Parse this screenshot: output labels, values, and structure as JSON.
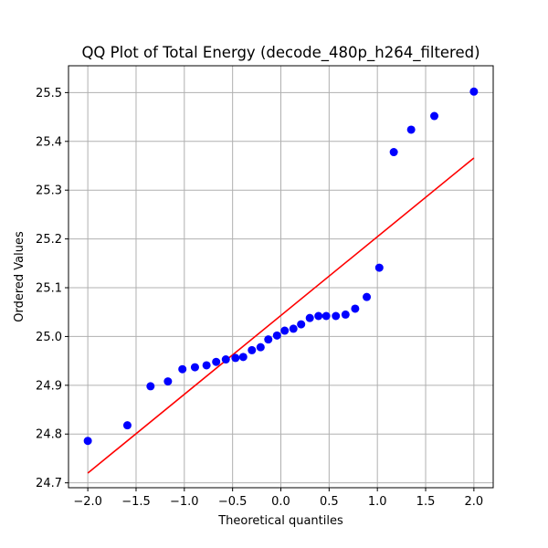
{
  "chart_data": {
    "type": "scatter",
    "title": "QQ Plot of Total Energy (decode_480p_h264_filtered)",
    "xlabel": "Theoretical quantiles",
    "ylabel": "Ordered Values",
    "xlim": [
      -2.2,
      2.2
    ],
    "ylim": [
      24.69,
      25.555
    ],
    "xticks": [
      -2.0,
      -1.5,
      -1.0,
      -0.5,
      0.0,
      0.5,
      1.0,
      1.5,
      2.0
    ],
    "xtick_labels": [
      "−2.0",
      "−1.5",
      "−1.0",
      "−0.5",
      "0.0",
      "0.5",
      "1.0",
      "1.5",
      "2.0"
    ],
    "yticks": [
      24.7,
      24.8,
      24.9,
      25.0,
      25.1,
      25.2,
      25.3,
      25.4,
      25.5
    ],
    "ytick_labels": [
      "24.7",
      "24.8",
      "24.9",
      "25.0",
      "25.1",
      "25.2",
      "25.3",
      "25.4",
      "25.5"
    ],
    "grid": true,
    "colors": {
      "points": "#0000ff",
      "fit_line": "#ff0000"
    },
    "points": {
      "x": [
        -2.0,
        -1.59,
        -1.35,
        -1.17,
        -1.02,
        -0.89,
        -0.77,
        -0.67,
        -0.57,
        -0.47,
        -0.39,
        -0.3,
        -0.21,
        -0.13,
        -0.04,
        0.04,
        0.13,
        0.21,
        0.3,
        0.39,
        0.47,
        0.57,
        0.67,
        0.77,
        0.89,
        1.02,
        1.17,
        1.35,
        1.59,
        2.0
      ],
      "y": [
        24.786,
        24.818,
        24.898,
        24.908,
        24.933,
        24.937,
        24.941,
        24.948,
        24.953,
        24.956,
        24.958,
        24.972,
        24.978,
        24.994,
        25.002,
        25.012,
        25.016,
        25.025,
        25.038,
        25.042,
        25.042,
        25.042,
        25.045,
        25.057,
        25.081,
        25.141,
        25.378,
        25.424,
        25.452,
        25.502
      ]
    },
    "fit_line": {
      "x": [
        -2.0,
        2.0
      ],
      "y": [
        24.72,
        25.366
      ]
    }
  }
}
